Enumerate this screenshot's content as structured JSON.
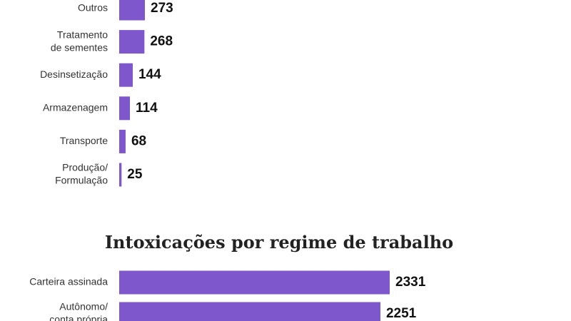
{
  "chart_data": [
    {
      "type": "bar",
      "orientation": "horizontal",
      "title": "",
      "categories": [
        [
          "Outros"
        ],
        [
          "Tratamento",
          "de sementes"
        ],
        [
          "Desinsetização"
        ],
        [
          "Armazenagem"
        ],
        [
          "Transporte"
        ],
        [
          "Produção/",
          "Formulação"
        ]
      ],
      "values": [
        273,
        268,
        144,
        114,
        68,
        25
      ],
      "value_labels": [
        "273",
        "268",
        "144",
        "114",
        "68",
        "25"
      ],
      "color": "#7e57cd"
    },
    {
      "type": "bar",
      "orientation": "horizontal",
      "title": "Intoxicações por regime de trabalho",
      "categories": [
        [
          "Carteira assinada"
        ],
        [
          "Autônomo/",
          "conta própria"
        ]
      ],
      "values": [
        2331,
        2251
      ],
      "value_labels": [
        "2331",
        "2251"
      ],
      "color": "#7e57cd"
    }
  ]
}
